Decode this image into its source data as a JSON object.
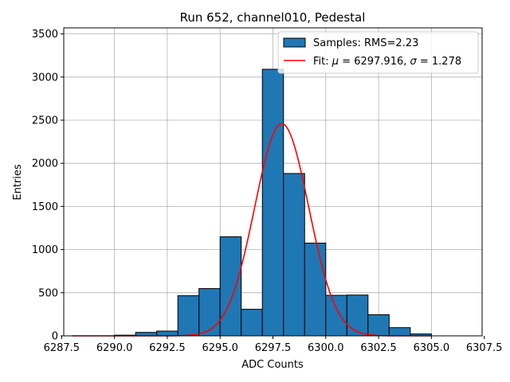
{
  "chart_data": {
    "type": "bar",
    "title": "Run 652, channel010, Pedestal",
    "xlabel": "ADC Counts",
    "ylabel": "Entries",
    "xlim": [
      6287.6,
      6307.4
    ],
    "ylim": [
      0,
      3570
    ],
    "x_ticks": [
      6287.5,
      6290.0,
      6292.5,
      6295.0,
      6297.5,
      6300.0,
      6302.5,
      6305.0,
      6307.5
    ],
    "x_tick_labels": [
      "6287.5",
      "6290.0",
      "6292.5",
      "6295.0",
      "6297.5",
      "6300.0",
      "6302.5",
      "6305.0",
      "6307.5"
    ],
    "y_ticks": [
      0,
      500,
      1000,
      1500,
      2000,
      2500,
      3000,
      3500
    ],
    "y_tick_labels": [
      "0",
      "500",
      "1000",
      "1500",
      "2000",
      "2500",
      "3000",
      "3500"
    ],
    "grid": true,
    "legend_position": "top-right",
    "histogram": {
      "name": "Samples: RMS=2.23",
      "color": "#1f77b4",
      "edge_color": "#000000",
      "bin_edges": [
        6288,
        6289,
        6290,
        6291,
        6292,
        6293,
        6294,
        6295,
        6296,
        6297,
        6298,
        6299,
        6300,
        6301,
        6302,
        6303,
        6304,
        6305,
        6306,
        6307
      ],
      "counts": [
        0,
        0,
        8,
        40,
        55,
        465,
        548,
        1148,
        308,
        3090,
        1882,
        1075,
        470,
        473,
        245,
        95,
        22,
        0,
        0
      ]
    },
    "fit": {
      "name": "Fit: μ = 6297.916, σ = 1.278",
      "label_prefix": "Fit: ",
      "mu_symbol": "μ",
      "mu_text": " = 6297.916, ",
      "sigma_symbol": "σ",
      "sigma_text": " = 1.278",
      "color": "#ff0000",
      "mu": 6297.916,
      "sigma": 1.278,
      "amplitude": 2460,
      "x_range": [
        6288,
        6305
      ]
    }
  }
}
